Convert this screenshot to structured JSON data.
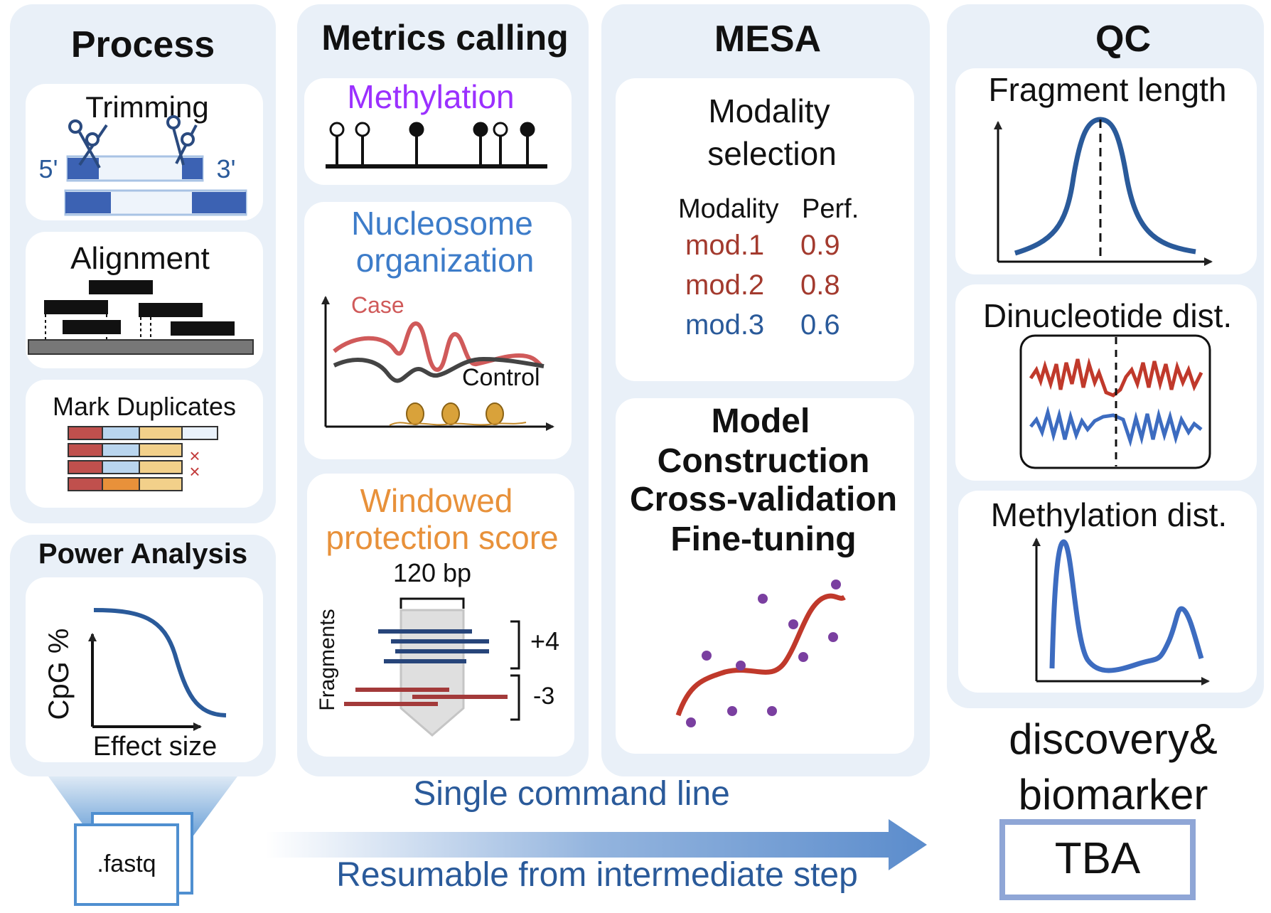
{
  "process": {
    "title": "Process",
    "trimming": {
      "title": "Trimming",
      "five_prime": "5'",
      "three_prime": "3'"
    },
    "alignment": {
      "title": "Alignment"
    },
    "mark_duplicates": {
      "title": "Mark Duplicates",
      "marker": "×"
    }
  },
  "power_analysis": {
    "title": "Power Analysis",
    "ylabel": "CpG %",
    "xlabel": "Effect size",
    "curve_color": "#2a5a9a"
  },
  "input": {
    "file_label": ".fastq"
  },
  "metrics": {
    "title": "Metrics calling",
    "methylation": {
      "title": "Methylation",
      "color": "#9b30ff",
      "sites": [
        0,
        0,
        1,
        1,
        0,
        1
      ]
    },
    "nucleosome": {
      "title_line1": "Nucleosome",
      "title_line2": "organization",
      "color": "#3d7cc9",
      "case_label": "Case",
      "control_label": "Control",
      "case_color": "#d05a5a",
      "control_color": "#444444"
    },
    "wps": {
      "title_line1": "Windowed",
      "title_line2": "protection score",
      "color": "#e8913a",
      "window_label": "120 bp",
      "ylabel": "Fragments",
      "plus_label": "+4",
      "minus_label": "-3"
    }
  },
  "mesa": {
    "title": "MESA",
    "selection": {
      "title_line1": "Modality",
      "title_line2": "selection",
      "col_modality": "Modality",
      "col_perf": "Perf.",
      "rows": [
        {
          "name": "mod.1",
          "perf": "0.9",
          "color": "#a33a2e"
        },
        {
          "name": "mod.2",
          "perf": "0.8",
          "color": "#a33a2e"
        },
        {
          "name": "mod.3",
          "perf": "0.6",
          "color": "#2a5a9a"
        }
      ]
    },
    "model": {
      "lines": [
        "Model",
        "Construction",
        "Cross-validation",
        "Fine-tuning"
      ]
    }
  },
  "qc": {
    "title": "QC",
    "fragment_length": "Fragment length",
    "dinucleotide": "Dinucleotide dist.",
    "methylation_dist": "Methylation dist."
  },
  "pipeline": {
    "line1": "Single command line",
    "line2": "Resumable from intermediate step",
    "text_color": "#2a5a9a"
  },
  "output": {
    "line1": "discovery&",
    "line2": "biomarker",
    "box_label": "TBA"
  }
}
